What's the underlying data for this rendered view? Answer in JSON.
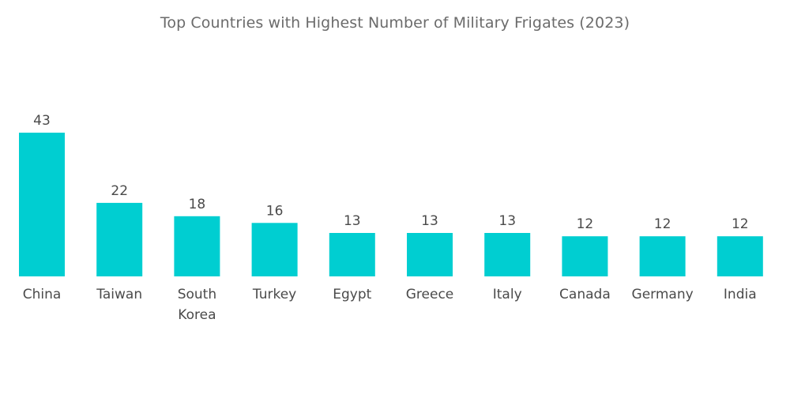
{
  "chart_data": {
    "type": "bar",
    "title": "Top Countries with Highest Number of Military Frigates (2023)",
    "categories": [
      [
        "China"
      ],
      [
        "Taiwan"
      ],
      [
        "South",
        "Korea"
      ],
      [
        "Turkey"
      ],
      [
        "Egypt"
      ],
      [
        "Greece"
      ],
      [
        "Italy"
      ],
      [
        "Canada"
      ],
      [
        "Germany"
      ],
      [
        "India"
      ]
    ],
    "values": [
      43,
      22,
      18,
      16,
      13,
      13,
      13,
      12,
      12,
      12
    ],
    "xlabel": "",
    "ylabel": "",
    "ylim": [
      0,
      43
    ],
    "bar_color": "#00ced1",
    "text_color": "#4a4a4a",
    "grid": false
  }
}
